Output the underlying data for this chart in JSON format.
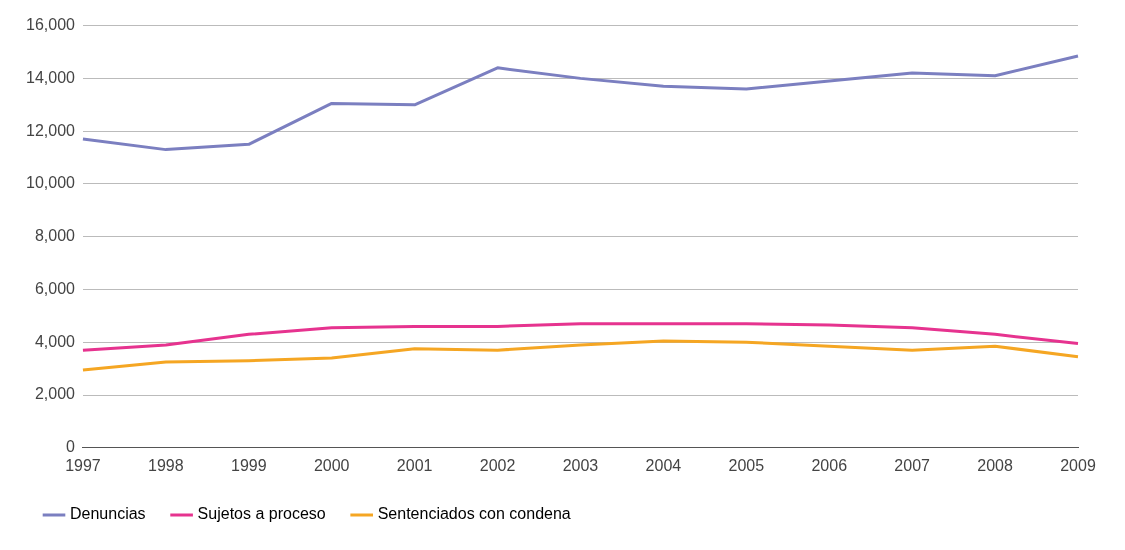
{
  "chart_data": {
    "type": "line",
    "categories": [
      "1997",
      "1998",
      "1999",
      "2000",
      "2001",
      "2002",
      "2003",
      "2004",
      "2005",
      "2006",
      "2007",
      "2008",
      "2009"
    ],
    "series": [
      {
        "name": "Denuncias",
        "color": "#7b7fc0",
        "values": [
          11700,
          11300,
          11500,
          13050,
          13000,
          14400,
          14000,
          13700,
          13600,
          13900,
          14200,
          14100,
          14850
        ]
      },
      {
        "name": "Sujetos a proceso",
        "color": "#e6338f",
        "values": [
          3700,
          3900,
          4300,
          4550,
          4600,
          4600,
          4700,
          4700,
          4700,
          4650,
          4550,
          4300,
          3950
        ]
      },
      {
        "name": "Sentenciados con condena",
        "color": "#f5a623",
        "values": [
          2950,
          3250,
          3300,
          3400,
          3750,
          3700,
          3900,
          4050,
          4000,
          3850,
          3700,
          3850,
          3450
        ]
      }
    ],
    "ylim": [
      0,
      16000
    ],
    "yticks": [
      0,
      {
        "value": 2000,
        "label": "2,000"
      },
      {
        "value": 4000,
        "label": "4,000"
      },
      {
        "value": 6000,
        "label": "6,000"
      },
      {
        "value": 8000,
        "label": "8,000"
      },
      {
        "value": 10000,
        "label": "10,000"
      },
      {
        "value": 12000,
        "label": "12,000"
      },
      {
        "value": 14000,
        "label": "14,000"
      },
      {
        "value": 16000,
        "label": "16,000"
      }
    ],
    "grid": "y",
    "legend": "bottom",
    "marker": "none",
    "line_style": "solid"
  }
}
